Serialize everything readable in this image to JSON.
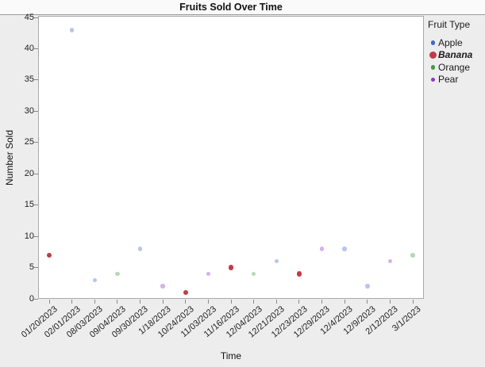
{
  "window": {
    "title_bar_text": "Fruits Sold Over Time"
  },
  "legend": {
    "title": "Fruit Type",
    "items": [
      {
        "label": "Apple",
        "color": "#4468C8",
        "emphasis": false
      },
      {
        "label": "Banana",
        "color": "#C13B47",
        "emphasis": true
      },
      {
        "label": "Orange",
        "color": "#3D9C47",
        "emphasis": false
      },
      {
        "label": "Pear",
        "color": "#9135C8",
        "emphasis": false
      }
    ]
  },
  "colors": {
    "background": "#ededed",
    "plot_background": "#ffffff",
    "plot_border": "#a9a9a9",
    "axis_tick": "#8a8a8a",
    "faded_point_opacity": 0.38
  },
  "chart_data": {
    "type": "scatter",
    "title": "Fruits Sold Over Time",
    "xlabel": "Time",
    "ylabel": "Number Sold",
    "ylim": [
      0,
      45
    ],
    "ytick_step": 5,
    "grid": false,
    "legend_position": "right",
    "legend_title": "Fruit Type",
    "categories": [
      "01/20/2023",
      "02/01/2023",
      "08/03/2023",
      "09/04/2023",
      "09/30/2023",
      "1/18/2023",
      "10/24/2023",
      "11/03/2023",
      "11/16/2023",
      "12/04/2023",
      "12/21/2023",
      "12/23/2023",
      "12/29/2023",
      "12/4/2023",
      "12/9/2023",
      "2/12/2023",
      "3/1/2023"
    ],
    "series": [
      {
        "name": "Apple",
        "color": "#4468C8",
        "selected": false,
        "points": [
          {
            "x": "02/01/2023",
            "y": 43
          },
          {
            "x": "08/03/2023",
            "y": 3
          },
          {
            "x": "09/30/2023",
            "y": 8
          },
          {
            "x": "12/21/2023",
            "y": 6
          },
          {
            "x": "12/4/2023",
            "y": 8
          },
          {
            "x": "12/9/2023",
            "y": 2
          }
        ]
      },
      {
        "name": "Banana",
        "color": "#C13B47",
        "selected": true,
        "points": [
          {
            "x": "01/20/2023",
            "y": 7
          },
          {
            "x": "10/24/2023",
            "y": 1
          },
          {
            "x": "11/16/2023",
            "y": 5
          },
          {
            "x": "12/23/2023",
            "y": 4
          }
        ]
      },
      {
        "name": "Orange",
        "color": "#3D9C47",
        "selected": false,
        "points": [
          {
            "x": "09/04/2023",
            "y": 4
          },
          {
            "x": "12/04/2023",
            "y": 4
          },
          {
            "x": "3/1/2023",
            "y": 7
          }
        ]
      },
      {
        "name": "Pear",
        "color": "#9135C8",
        "selected": false,
        "points": [
          {
            "x": "1/18/2023",
            "y": 2
          },
          {
            "x": "11/03/2023",
            "y": 4
          },
          {
            "x": "12/29/2023",
            "y": 8
          },
          {
            "x": "2/12/2023",
            "y": 6
          }
        ]
      }
    ]
  }
}
